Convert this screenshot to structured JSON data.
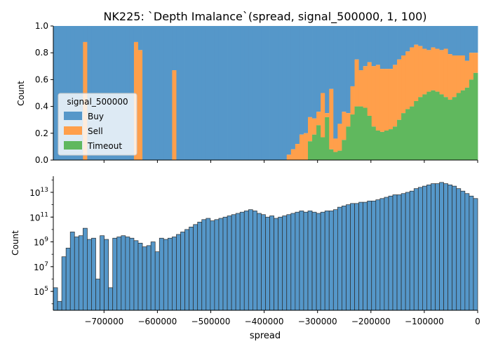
{
  "figure": {
    "title": "NK225: `Depth Imalance`(spread, signal_500000, 1, 100)"
  },
  "chart_data": [
    {
      "type": "area",
      "stacked": "fill",
      "title": "NK225: `Depth Imalance`(spread, signal_500000, 1, 100)",
      "xlabel": "",
      "ylabel": "Count",
      "xlim": [
        -795000,
        0
      ],
      "ylim": [
        0,
        1
      ],
      "yticks": [
        0.0,
        0.2,
        0.4,
        0.6,
        0.8,
        1.0
      ],
      "ytick_labels": [
        "0.0",
        "0.2",
        "0.4",
        "0.6",
        "0.8",
        "1.0"
      ],
      "legend": {
        "title": "signal_500000",
        "placement": "center-left",
        "entries": [
          "Buy",
          "Sell",
          "Timeout"
        ]
      },
      "colors": {
        "Buy": "#5597c9",
        "Sell": "#ff9f4b",
        "Timeout": "#60b85e"
      },
      "bins": {
        "start": -795000,
        "width": 7950,
        "count": 100
      },
      "series": [
        {
          "name": "Timeout",
          "values": [
            0,
            0,
            0,
            0,
            0,
            0,
            0,
            0,
            0,
            0,
            0,
            0,
            0,
            0,
            0,
            0,
            0,
            0,
            0,
            0,
            0,
            0,
            0,
            0,
            0,
            0,
            0,
            0,
            0,
            0,
            0,
            0,
            0,
            0,
            0,
            0,
            0,
            0,
            0,
            0,
            0,
            0,
            0,
            0,
            0,
            0,
            0,
            0,
            0,
            0,
            0,
            0,
            0,
            0,
            0,
            0,
            0,
            0,
            0,
            0,
            0.14,
            0.19,
            0.26,
            0.17,
            0.32,
            0.08,
            0.06,
            0.07,
            0.15,
            0.25,
            0.34,
            0.4,
            0.4,
            0.39,
            0.33,
            0.25,
            0.22,
            0.21,
            0.22,
            0.23,
            0.25,
            0.3,
            0.35,
            0.38,
            0.4,
            0.44,
            0.47,
            0.49,
            0.51,
            0.52,
            0.51,
            0.49,
            0.47,
            0.45,
            0.47,
            0.5,
            0.52,
            0.54,
            0.6,
            0.65
          ]
        },
        {
          "name": "Sell",
          "values": [
            0,
            0,
            0,
            0,
            0,
            0,
            0,
            0.88,
            0,
            0,
            0,
            0,
            0,
            0,
            0,
            0,
            0,
            0,
            0,
            0.88,
            0.82,
            0,
            0,
            0,
            0,
            0,
            0,
            0,
            0.67,
            0,
            0,
            0,
            0,
            0,
            0,
            0,
            0,
            0,
            0,
            0,
            0,
            0,
            0,
            0,
            0,
            0,
            0,
            0,
            0,
            0,
            0,
            0,
            0,
            0,
            0,
            0.04,
            0.08,
            0.12,
            0.19,
            0.2,
            0.18,
            0.12,
            0.1,
            0.33,
            0.03,
            0.45,
            0.1,
            0.2,
            0.21,
            0.1,
            0.21,
            0.35,
            0.27,
            0.31,
            0.4,
            0.45,
            0.49,
            0.47,
            0.46,
            0.45,
            0.46,
            0.45,
            0.43,
            0.43,
            0.44,
            0.42,
            0.38,
            0.34,
            0.31,
            0.32,
            0.32,
            0.33,
            0.36,
            0.34,
            0.31,
            0.28,
            0.26,
            0.2,
            0.2,
            0.15
          ]
        }
      ]
    },
    {
      "type": "bar",
      "histogram": true,
      "xlabel": "spread",
      "ylabel": "Count",
      "yscale": "log",
      "xlim": [
        -795000,
        0
      ],
      "ylim": [
        3000,
        200000000000000.0
      ],
      "xticks": [
        -700000,
        -600000,
        -500000,
        -400000,
        -300000,
        -200000,
        -100000,
        0
      ],
      "xtick_labels": [
        "−700000",
        "−600000",
        "−500000",
        "−400000",
        "−300000",
        "−200000",
        "−100000",
        "0"
      ],
      "ytick_labels": [
        {
          "base": "10",
          "exp": "5",
          "value": 100000.0
        },
        {
          "base": "10",
          "exp": "7",
          "value": 10000000.0
        },
        {
          "base": "10",
          "exp": "9",
          "value": 1000000000.0
        },
        {
          "base": "10",
          "exp": "11",
          "value": 100000000000.0
        },
        {
          "base": "10",
          "exp": "13",
          "value": 10000000000000.0
        }
      ],
      "color": "#5597c9",
      "bins": {
        "start": -795000,
        "width": 7950,
        "count": 100
      },
      "log10_values": [
        5.3,
        4.2,
        7.8,
        8.5,
        9.8,
        9.4,
        9.5,
        10.1,
        9.2,
        9.3,
        6.0,
        9.5,
        9.2,
        5.3,
        9.3,
        9.4,
        9.5,
        9.4,
        9.3,
        9.1,
        8.9,
        8.6,
        8.7,
        9.0,
        8.2,
        9.3,
        9.2,
        9.3,
        9.4,
        9.6,
        9.8,
        10.0,
        10.2,
        10.4,
        10.6,
        10.8,
        10.9,
        10.7,
        10.8,
        10.9,
        11.0,
        11.1,
        11.2,
        11.3,
        11.4,
        11.5,
        11.6,
        11.5,
        11.3,
        11.2,
        11.0,
        11.1,
        10.9,
        11.0,
        11.1,
        11.2,
        11.3,
        11.4,
        11.5,
        11.4,
        11.5,
        11.4,
        11.3,
        11.4,
        11.5,
        11.5,
        11.6,
        11.8,
        11.9,
        12.0,
        12.1,
        12.1,
        12.2,
        12.2,
        12.3,
        12.3,
        12.4,
        12.5,
        12.6,
        12.7,
        12.8,
        12.8,
        12.9,
        13.0,
        13.1,
        13.3,
        13.4,
        13.5,
        13.6,
        13.7,
        13.7,
        13.8,
        13.7,
        13.6,
        13.5,
        13.3,
        13.1,
        12.9,
        12.7,
        12.5
      ]
    }
  ]
}
